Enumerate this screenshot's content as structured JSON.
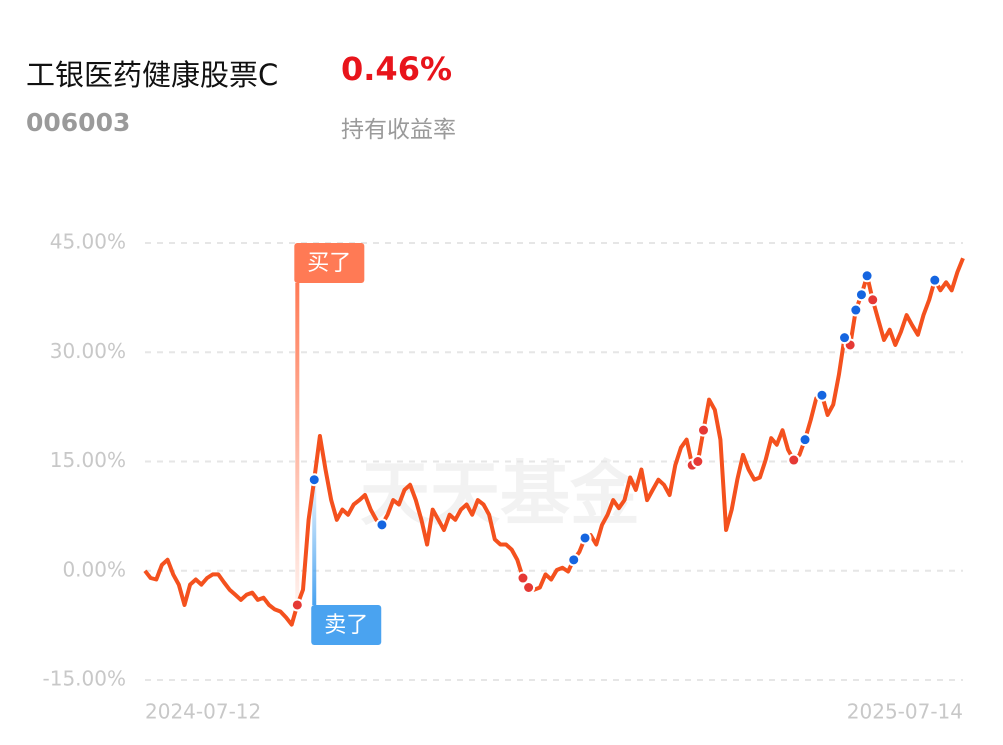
{
  "header": {
    "title": "工银医药健康股票C",
    "return": "0.46%",
    "return_label": "持有收益率",
    "code": "006003"
  },
  "watermark": "天天基金",
  "chart_data": {
    "type": "line",
    "categories": [
      "2024-07-12",
      null,
      null,
      null,
      null,
      null,
      null,
      null,
      null,
      null,
      null,
      null,
      null,
      null,
      null,
      null,
      null,
      null,
      null,
      null,
      null,
      null,
      null,
      null,
      null,
      null,
      null,
      null,
      null,
      null,
      null,
      null,
      null,
      null,
      null,
      null,
      null,
      null,
      null,
      null,
      null,
      null,
      null,
      null,
      null,
      null,
      null,
      null,
      null,
      null,
      null,
      null,
      null,
      null,
      null,
      null,
      null,
      null,
      null,
      null,
      null,
      null,
      null,
      null,
      null,
      null,
      null,
      null,
      null,
      null,
      null,
      null,
      null,
      null,
      null,
      null,
      null,
      null,
      null,
      null,
      null,
      null,
      null,
      null,
      null,
      null,
      null,
      null,
      null,
      null,
      null,
      null,
      null,
      null,
      null,
      null,
      null,
      null,
      null,
      null,
      null,
      null,
      null,
      null,
      null,
      null,
      null,
      null,
      null,
      null,
      null,
      null,
      null,
      null,
      null,
      null,
      null,
      null,
      null,
      null,
      null,
      null,
      null,
      null,
      null,
      null,
      null,
      null,
      null,
      null,
      null,
      null,
      null,
      null,
      null,
      null,
      null,
      null,
      null,
      null,
      null,
      null,
      null,
      null,
      null,
      "2025-07-14"
    ],
    "series": [
      {
        "name": "持有收益率",
        "color": "#f4511e",
        "values": [
          0,
          -1.0,
          -1.2,
          0.8,
          1.5,
          -0.5,
          -1.9,
          -4.7,
          -1.9,
          -1.2,
          -1.9,
          -1.0,
          -0.5,
          -0.5,
          -1.6,
          -2.6,
          -3.3,
          -4.0,
          -3.3,
          -3.0,
          -4.0,
          -3.7,
          -4.7,
          -5.3,
          -5.6,
          -6.4,
          -7.4,
          -4.7,
          -2.6,
          7.0,
          12.5,
          18.5,
          13.9,
          9.7,
          7.0,
          8.4,
          7.7,
          9.1,
          9.7,
          10.4,
          8.4,
          7.0,
          6.3,
          7.7,
          9.7,
          9.1,
          11.1,
          11.8,
          9.7,
          7.0,
          3.6,
          8.4,
          7.0,
          5.6,
          7.7,
          7.0,
          8.4,
          9.1,
          7.7,
          9.7,
          9.1,
          7.7,
          4.3,
          3.6,
          3.6,
          2.9,
          1.5,
          -1.0,
          -2.3,
          -2.6,
          -2.3,
          -0.5,
          -1.2,
          0.1,
          0.4,
          -0.1,
          1.5,
          2.6,
          4.5,
          4.9,
          3.6,
          6.3,
          7.7,
          9.7,
          8.6,
          9.7,
          12.8,
          11.1,
          13.9,
          9.7,
          11.1,
          12.5,
          11.8,
          10.4,
          14.5,
          16.9,
          18.0,
          14.5,
          15.0,
          19.3,
          23.5,
          22.1,
          18.0,
          5.6,
          8.4,
          12.5,
          15.9,
          13.9,
          12.5,
          12.8,
          15.2,
          18.2,
          17.3,
          19.3,
          16.6,
          15.2,
          15.9,
          18.0,
          20.7,
          23.7,
          24.1,
          21.4,
          22.8,
          26.9,
          32.0,
          31.0,
          35.8,
          37.9,
          40.5,
          37.2,
          34.4,
          31.7,
          33.1,
          31.0,
          32.8,
          35.1,
          33.7,
          32.4,
          35.1,
          37.2,
          39.9,
          38.5,
          39.6,
          38.5,
          41.0,
          42.9
        ]
      },
      {
        "name": "买了",
        "color": "#e53935",
        "values": [
          null,
          null,
          null,
          null,
          null,
          null,
          null,
          null,
          null,
          null,
          null,
          null,
          null,
          null,
          null,
          null,
          null,
          null,
          null,
          null,
          null,
          null,
          null,
          null,
          null,
          null,
          null,
          -4.7,
          null,
          null,
          null,
          null,
          null,
          null,
          null,
          null,
          null,
          null,
          null,
          null,
          null,
          null,
          null,
          null,
          null,
          null,
          null,
          null,
          null,
          null,
          null,
          null,
          null,
          null,
          null,
          null,
          null,
          null,
          null,
          null,
          null,
          null,
          null,
          null,
          null,
          null,
          null,
          -1.0,
          -2.3,
          null,
          null,
          null,
          null,
          null,
          null,
          null,
          null,
          null,
          null,
          null,
          null,
          null,
          null,
          null,
          null,
          null,
          null,
          null,
          null,
          null,
          null,
          null,
          null,
          null,
          null,
          null,
          null,
          14.5,
          15.0,
          19.3,
          null,
          null,
          null,
          null,
          null,
          null,
          null,
          null,
          null,
          null,
          null,
          null,
          null,
          null,
          null,
          15.2,
          null,
          null,
          null,
          null,
          null,
          null,
          null,
          null,
          null,
          31.0,
          null,
          null,
          null,
          37.2,
          null,
          null,
          null,
          null,
          null,
          null,
          null,
          null,
          null,
          null,
          null,
          null,
          null,
          null,
          null,
          null
        ]
      },
      {
        "name": "卖了",
        "color": "#1565e0",
        "values": [
          null,
          null,
          null,
          null,
          null,
          null,
          null,
          null,
          null,
          null,
          null,
          null,
          null,
          null,
          null,
          null,
          null,
          null,
          null,
          null,
          null,
          null,
          null,
          null,
          null,
          null,
          null,
          null,
          null,
          null,
          12.5,
          null,
          null,
          null,
          null,
          null,
          null,
          null,
          null,
          null,
          null,
          null,
          6.3,
          null,
          null,
          null,
          null,
          null,
          null,
          null,
          null,
          null,
          null,
          null,
          null,
          null,
          null,
          null,
          null,
          null,
          null,
          null,
          null,
          null,
          null,
          null,
          null,
          null,
          null,
          null,
          null,
          null,
          null,
          null,
          null,
          null,
          1.5,
          null,
          4.5,
          null,
          null,
          null,
          null,
          null,
          null,
          null,
          null,
          null,
          null,
          null,
          null,
          null,
          null,
          null,
          null,
          null,
          null,
          null,
          null,
          null,
          null,
          null,
          null,
          null,
          null,
          null,
          null,
          null,
          null,
          null,
          null,
          null,
          null,
          null,
          null,
          null,
          null,
          18.0,
          null,
          null,
          24.1,
          null,
          null,
          null,
          32.0,
          null,
          35.8,
          37.9,
          40.5,
          null,
          null,
          null,
          null,
          null,
          null,
          null,
          null,
          null,
          null,
          null,
          39.9,
          null,
          null,
          null,
          null,
          null
        ]
      }
    ],
    "ylim": [
      -15,
      45
    ],
    "yticks": [
      {
        "value": -15,
        "label": "-15.00%"
      },
      {
        "value": 0,
        "label": "0.00%"
      },
      {
        "value": 15,
        "label": "15.00%"
      },
      {
        "value": 30,
        "label": "30.00%"
      },
      {
        "value": 45,
        "label": "45.00%"
      }
    ],
    "grid": true
  }
}
